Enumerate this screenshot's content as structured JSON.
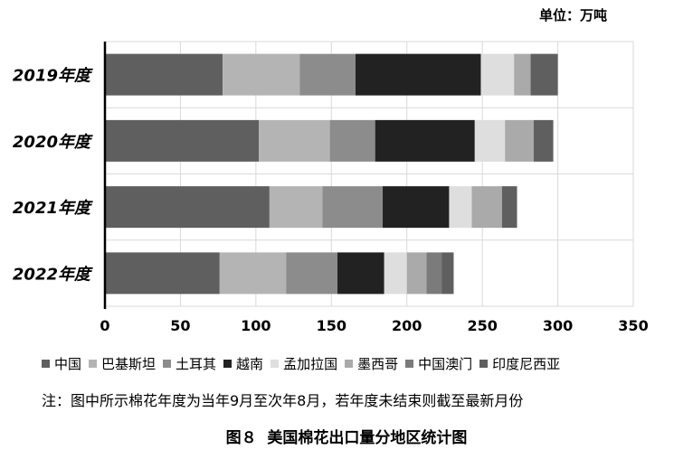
{
  "unit_label": "单位：万吨",
  "note": "注：图中所示棉花年度为当年9月至次年8月，若年度未结束则截至最新月份",
  "caption": "图８  美国棉花出口量分地区统计图",
  "chart_data": {
    "type": "bar",
    "orientation": "horizontal",
    "stacked": true,
    "categories": [
      "2019年度",
      "2020年度",
      "2021年度",
      "2022年度"
    ],
    "series": [
      {
        "name": "中国",
        "color": "#5f5f5f",
        "values": [
          78,
          102,
          109,
          76
        ]
      },
      {
        "name": "巴基斯坦",
        "color": "#b4b4b4",
        "values": [
          51,
          47,
          35,
          44
        ]
      },
      {
        "name": "土耳其",
        "color": "#8c8c8c",
        "values": [
          37,
          30,
          40,
          34
        ]
      },
      {
        "name": "越南",
        "color": "#222222",
        "values": [
          83,
          66,
          44,
          31
        ]
      },
      {
        "name": "孟加拉国",
        "color": "#dedede",
        "values": [
          22,
          20,
          15,
          15
        ]
      },
      {
        "name": "墨西哥",
        "color": "#aaaaaa",
        "values": [
          11,
          19,
          20,
          13
        ]
      },
      {
        "name": "中国澳门",
        "color": "#7b7b7b",
        "values": [
          0,
          0,
          0,
          10
        ]
      },
      {
        "name": "印度尼西亚",
        "color": "#5f5f5f",
        "values": [
          18,
          13,
          10,
          8
        ]
      }
    ],
    "xlim": [
      0,
      350
    ],
    "xticks": [
      0,
      50,
      100,
      150,
      200,
      250,
      300,
      350
    ],
    "grid": true,
    "legend_position": "bottom"
  }
}
